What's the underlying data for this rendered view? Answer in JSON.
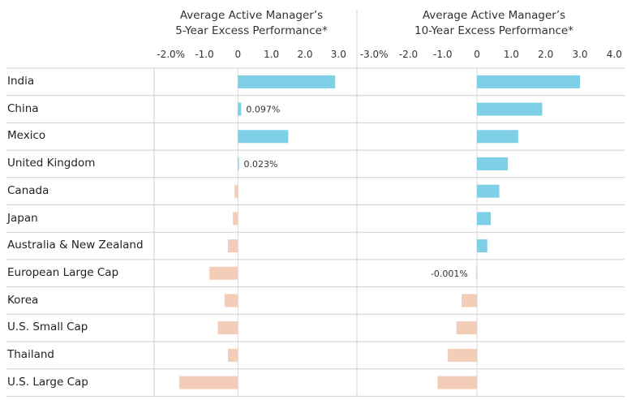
{
  "chart_data": [
    {
      "type": "bar",
      "orientation": "horizontal",
      "title": [
        "Average Active Manager’s",
        "5-Year Excess Performance*"
      ],
      "categories": [
        "India",
        "China",
        "Mexico",
        "United Kingdom",
        "Canada",
        "Japan",
        "Australia & New Zealand",
        "European Large Cap",
        "Korea",
        "U.S. Small Cap",
        "Thailand",
        "U.S. Large Cap"
      ],
      "values": [
        2.9,
        0.097,
        1.5,
        0.023,
        -0.1,
        -0.15,
        -0.3,
        -0.85,
        -0.4,
        -0.6,
        -0.3,
        -1.75
      ],
      "data_labels": [
        "",
        "0.097%",
        "",
        "0.023%",
        "",
        "",
        "",
        "",
        "",
        "",
        "",
        ""
      ],
      "xlim": [
        -2.5,
        3.5
      ],
      "ticks": [
        -2,
        -1,
        0,
        1,
        2,
        3
      ],
      "tick_labels": [
        "-2.0%",
        "-1.0",
        "0",
        "1.0",
        "2.0",
        "3.0"
      ],
      "colors": {
        "positive": "#7fd0e6",
        "negative": "#f3cdb8"
      }
    },
    {
      "type": "bar",
      "orientation": "horizontal",
      "title": [
        "Average Active Manager’s",
        "10-Year Excess Performance*"
      ],
      "categories": [
        "India",
        "China",
        "Mexico",
        "United Kingdom",
        "Canada",
        "Japan",
        "Australia & New Zealand",
        "European Large Cap",
        "Korea",
        "U.S. Small Cap",
        "Thailand",
        "U.S. Large Cap"
      ],
      "values": [
        3.0,
        1.9,
        1.2,
        0.9,
        0.65,
        0.4,
        0.3,
        -0.001,
        -0.45,
        -0.6,
        -0.85,
        -1.15
      ],
      "data_labels": [
        "",
        "",
        "",
        "",
        "",
        "",
        "",
        "-0.001%",
        "",
        "",
        "",
        ""
      ],
      "xlim": [
        -3.5,
        4.3
      ],
      "ticks": [
        -3,
        -2,
        -1,
        0,
        1,
        2,
        3,
        4
      ],
      "tick_labels": [
        "-3.0%",
        "-2.0",
        "-1.0",
        "0",
        "1.0",
        "2.0",
        "3.0",
        "4.0"
      ],
      "colors": {
        "positive": "#7fd0e6",
        "negative": "#f3cdb8"
      }
    }
  ]
}
